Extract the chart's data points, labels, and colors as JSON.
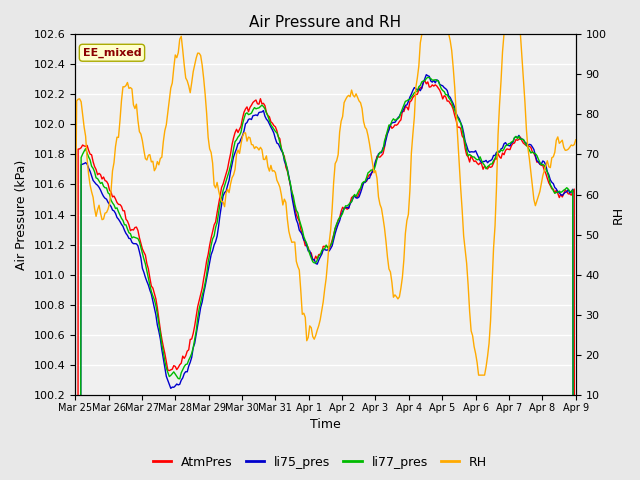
{
  "title": "Air Pressure and RH",
  "xlabel": "Time",
  "ylabel_left": "Air Pressure (kPa)",
  "ylabel_right": "RH",
  "ylim_left": [
    100.2,
    102.6
  ],
  "ylim_right": [
    10,
    100
  ],
  "yticks_left": [
    100.2,
    100.4,
    100.6,
    100.8,
    101.0,
    101.2,
    101.4,
    101.6,
    101.8,
    102.0,
    102.2,
    102.4,
    102.6
  ],
  "yticks_right": [
    10,
    20,
    30,
    40,
    50,
    60,
    70,
    80,
    90,
    100
  ],
  "fig_bg_color": "#e8e8e8",
  "plot_bg_color": "#f0f0f0",
  "annotation_text": "EE_mixed",
  "annotation_color": "#8b0000",
  "annotation_bg": "#ffffcc",
  "annotation_border": "#aaaa00",
  "colors": {
    "AtmPres": "#ff0000",
    "li75_pres": "#0000cc",
    "li77_pres": "#00bb00",
    "RH": "#ffaa00"
  },
  "legend_labels": [
    "AtmPres",
    "li75_pres",
    "li77_pres",
    "RH"
  ],
  "x_tick_labels": [
    "Mar 25",
    "Mar 26",
    "Mar 27",
    "Mar 28",
    "Mar 29",
    "Mar 30",
    "Mar 31",
    "Apr 1",
    "Apr 2",
    "Apr 3",
    "Apr 4",
    "Apr 5",
    "Apr 6",
    "Apr 7",
    "Apr 8",
    "Apr 9"
  ],
  "n_points": 336
}
